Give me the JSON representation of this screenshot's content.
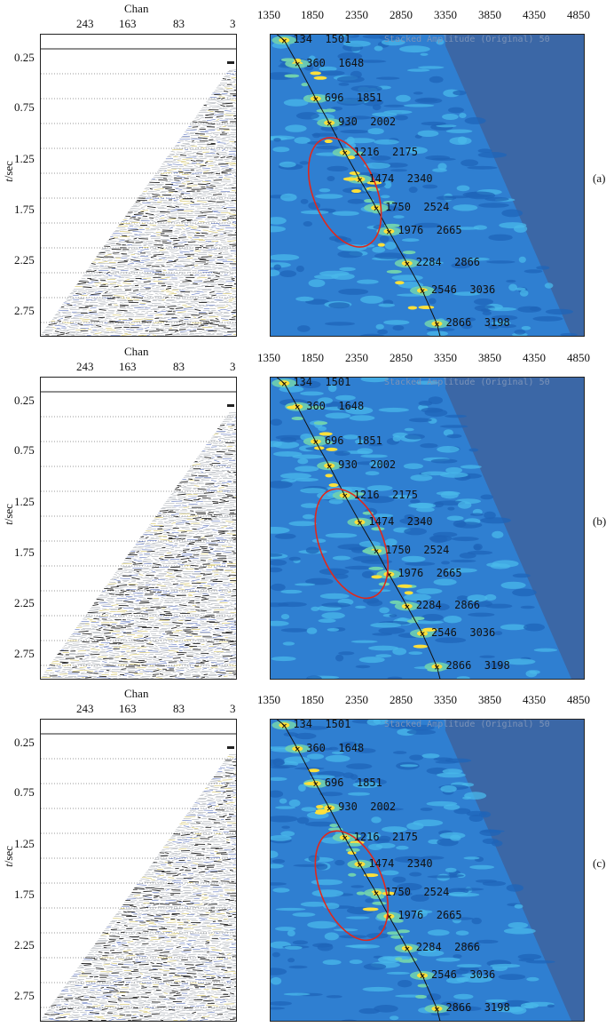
{
  "chan_title": "Chan",
  "chan_ticks": [
    "243",
    "163",
    "83",
    "3"
  ],
  "velocity_ticks": [
    "1350",
    "1850",
    "2350",
    "2850",
    "3350",
    "3850",
    "4350",
    "4850"
  ],
  "time_ticks": [
    "0.25",
    "0.75",
    "1.25",
    "1.75",
    "2.25",
    "2.75"
  ],
  "time_axis_label_var": "t",
  "time_axis_label_unit": "/sec",
  "semblance_header": "Stacked Amplitude (Original) 50",
  "picks": [
    {
      "label": "134  1501",
      "velocity": 1501,
      "time": 0.134
    },
    {
      "label": "360  1648",
      "velocity": 1648,
      "time": 0.36
    },
    {
      "label": "696  1851",
      "velocity": 1851,
      "time": 0.696
    },
    {
      "label": "930  2002",
      "velocity": 2002,
      "time": 0.93
    },
    {
      "label": "1216  2175",
      "velocity": 2175,
      "time": 1.216
    },
    {
      "label": "1474  2340",
      "velocity": 2340,
      "time": 1.474
    },
    {
      "label": "1750  2524",
      "velocity": 2524,
      "time": 1.75
    },
    {
      "label": "1976  2665",
      "velocity": 2665,
      "time": 1.976
    },
    {
      "label": "2284  2866",
      "velocity": 2866,
      "time": 2.284
    },
    {
      "label": "2546  3036",
      "velocity": 3036,
      "time": 2.546
    },
    {
      "label": "2866  3198",
      "velocity": 3198,
      "time": 2.866
    }
  ],
  "panels": [
    {
      "label": "(a)",
      "ellipse": {
        "cx_velocity": 2175,
        "cy_time": 1.6,
        "rx": 0.1,
        "ry": 0.19,
        "angle": -22
      }
    },
    {
      "label": "(b)",
      "ellipse": {
        "cx_velocity": 2250,
        "cy_time": 1.68,
        "rx": 0.1,
        "ry": 0.19,
        "angle": -22
      }
    },
    {
      "label": "(c)",
      "ellipse": {
        "cx_velocity": 2250,
        "cy_time": 1.68,
        "rx": 0.1,
        "ry": 0.19,
        "angle": -22
      }
    }
  ],
  "colors": {
    "semblance_background": "#3b67a6",
    "semblance_low": "#2f7fd1",
    "semblance_mid": "#49b8ea",
    "semblance_high": "#6fd0b0",
    "semblance_peak": "#ffe03a",
    "ellipse": "#e0281c",
    "pick_curve": "#111111"
  }
}
